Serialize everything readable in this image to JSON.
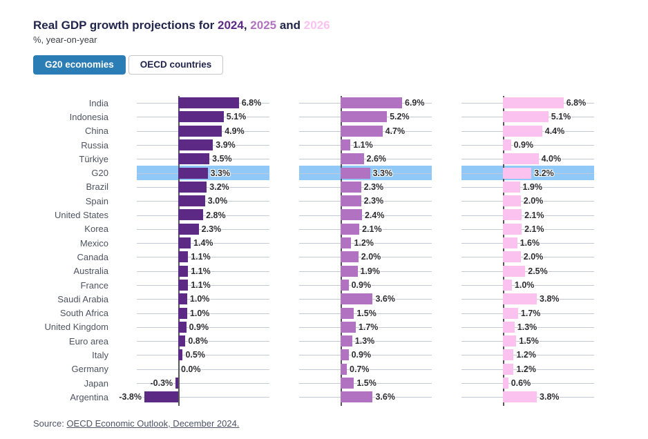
{
  "colors": {
    "navy": "#21254c",
    "tab_active_bg": "#2a7eb5",
    "gridline": "#c2c8d4",
    "axis": "#56575c",
    "highlight_band": "#90c9f8"
  },
  "header": {
    "title_prefix": "Real GDP growth projections for ",
    "separator_1": ", ",
    "separator_2": " and ",
    "years": [
      {
        "label": "2024",
        "color": "#5c2a85"
      },
      {
        "label": "2025",
        "color": "#b173c1"
      },
      {
        "label": "2026",
        "color": "#fbc2f0"
      }
    ],
    "subtitle": "%, year-on-year"
  },
  "tabs": [
    {
      "label": "G20 economies",
      "active": true
    },
    {
      "label": "OECD countries",
      "active": false
    }
  ],
  "chart_data": {
    "type": "bar",
    "orientation": "horizontal",
    "title": "Real GDP growth projections for 2024, 2025 and 2026",
    "subtitle": "%, year-on-year",
    "value_unit": "%",
    "grid": true,
    "xlim_per_panel": [
      -4.7,
      10.2
    ],
    "highlighted_category": "G20",
    "categories": [
      "India",
      "Indonesia",
      "China",
      "Russia",
      "Türkiye",
      "G20",
      "Brazil",
      "Spain",
      "United States",
      "Korea",
      "Mexico",
      "Canada",
      "Australia",
      "France",
      "Saudi Arabia",
      "South Africa",
      "United Kingdom",
      "Euro area",
      "Italy",
      "Germany",
      "Japan",
      "Argentina"
    ],
    "series": [
      {
        "name": "2024",
        "color": "#5c2a85",
        "values": [
          6.8,
          5.1,
          4.9,
          3.9,
          3.5,
          3.3,
          3.2,
          3.0,
          2.8,
          2.3,
          1.4,
          1.1,
          1.1,
          1.1,
          1.0,
          1.0,
          0.9,
          0.8,
          0.5,
          0.0,
          -0.3,
          -3.8
        ]
      },
      {
        "name": "2025",
        "color": "#b173c1",
        "values": [
          6.9,
          5.2,
          4.7,
          1.1,
          2.6,
          3.3,
          2.3,
          2.3,
          2.4,
          2.1,
          1.2,
          2.0,
          1.9,
          0.9,
          3.6,
          1.5,
          1.7,
          1.3,
          0.9,
          0.7,
          1.5,
          3.6
        ]
      },
      {
        "name": "2026",
        "color": "#fbc2f0",
        "values": [
          6.8,
          5.1,
          4.4,
          0.9,
          4.0,
          3.2,
          1.9,
          2.0,
          2.1,
          2.1,
          1.6,
          2.0,
          2.5,
          1.0,
          3.8,
          1.7,
          1.3,
          1.5,
          1.2,
          1.2,
          0.6,
          3.8
        ]
      }
    ]
  },
  "source": {
    "prefix": "Source: ",
    "link_text": "OECD Economic Outlook, December 2024."
  }
}
